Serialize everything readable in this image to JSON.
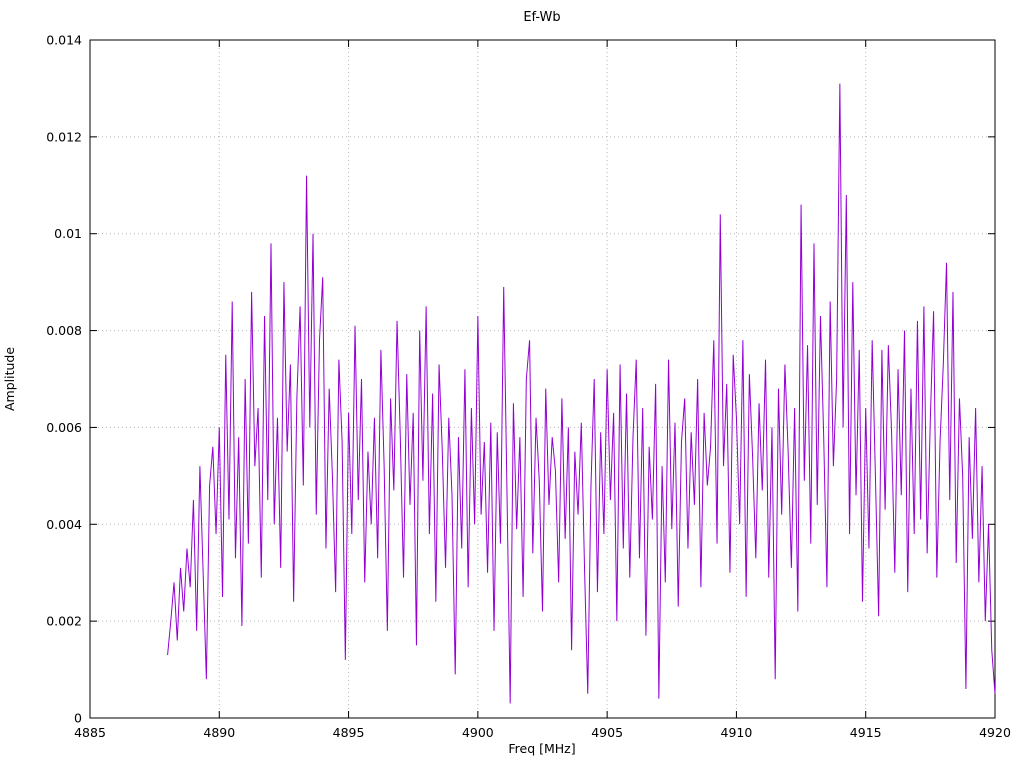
{
  "chart_data": {
    "type": "line",
    "title": "Ef-Wb",
    "xlabel": "Freq [MHz]",
    "ylabel": "Amplitude",
    "xlim": [
      4885,
      4920
    ],
    "ylim": [
      0,
      0.014
    ],
    "x_ticks": [
      4885,
      4890,
      4895,
      4900,
      4905,
      4910,
      4915,
      4920
    ],
    "x_tick_labels": [
      "4885",
      "4890",
      "4895",
      "4900",
      "4905",
      "4910",
      "4915",
      "4920"
    ],
    "y_ticks": [
      0,
      0.002,
      0.004,
      0.006,
      0.008,
      0.01,
      0.012,
      0.014
    ],
    "y_tick_labels": [
      "0",
      "0.002",
      "0.004",
      "0.006",
      "0.008",
      "0.01",
      "0.012",
      "0.014"
    ],
    "grid": true,
    "legend": "none",
    "line_color": "#9400d3",
    "grid_color": "#b8b8b8",
    "border_color": "#000000",
    "series": [
      {
        "name": "Ef-Wb",
        "x_start": 4888.0,
        "x_step": 0.125,
        "y_scale": 0.0001,
        "values": [
          13,
          20,
          28,
          16,
          31,
          22,
          35,
          27,
          45,
          18,
          52,
          30,
          8,
          48,
          56,
          38,
          60,
          25,
          75,
          41,
          86,
          33,
          58,
          19,
          70,
          36,
          88,
          52,
          64,
          29,
          83,
          45,
          98,
          40,
          62,
          31,
          90,
          55,
          73,
          24,
          66,
          85,
          48,
          112,
          60,
          100,
          42,
          78,
          91,
          35,
          68,
          50,
          26,
          74,
          57,
          12,
          63,
          38,
          81,
          45,
          70,
          28,
          55,
          40,
          62,
          33,
          76,
          52,
          18,
          66,
          47,
          82,
          58,
          29,
          71,
          44,
          63,
          15,
          80,
          49,
          85,
          38,
          67,
          24,
          73,
          55,
          31,
          62,
          46,
          9,
          58,
          35,
          72,
          27,
          64,
          40,
          83,
          42,
          57,
          30,
          61,
          18,
          59,
          36,
          89,
          47,
          3,
          65,
          39,
          58,
          25,
          70,
          78,
          34,
          62,
          49,
          22,
          68,
          44,
          58,
          51,
          28,
          66,
          37,
          60,
          14,
          55,
          42,
          61,
          31,
          5,
          48,
          70,
          26,
          59,
          38,
          72,
          45,
          63,
          20,
          73,
          35,
          67,
          29,
          58,
          74,
          33,
          64,
          17,
          56,
          41,
          69,
          4,
          52,
          28,
          74,
          39,
          61,
          23,
          57,
          66,
          35,
          59,
          44,
          70,
          27,
          63,
          48,
          56,
          78,
          36,
          104,
          52,
          69,
          30,
          75,
          62,
          40,
          78,
          25,
          71,
          54,
          33,
          65,
          47,
          74,
          29,
          60,
          8,
          68,
          42,
          73,
          55,
          31,
          64,
          22,
          106,
          49,
          77,
          36,
          98,
          44,
          83,
          58,
          27,
          86,
          52,
          70,
          131,
          60,
          108,
          38,
          90,
          46,
          76,
          24,
          64,
          35,
          78,
          50,
          21,
          76,
          43,
          77,
          59,
          30,
          72,
          46,
          80,
          26,
          68,
          38,
          82,
          41,
          85,
          34,
          62,
          84,
          29,
          57,
          73,
          94,
          45,
          88,
          32,
          66,
          50,
          6,
          58,
          37,
          64,
          28,
          52,
          20,
          40,
          14,
          5
        ]
      }
    ]
  }
}
